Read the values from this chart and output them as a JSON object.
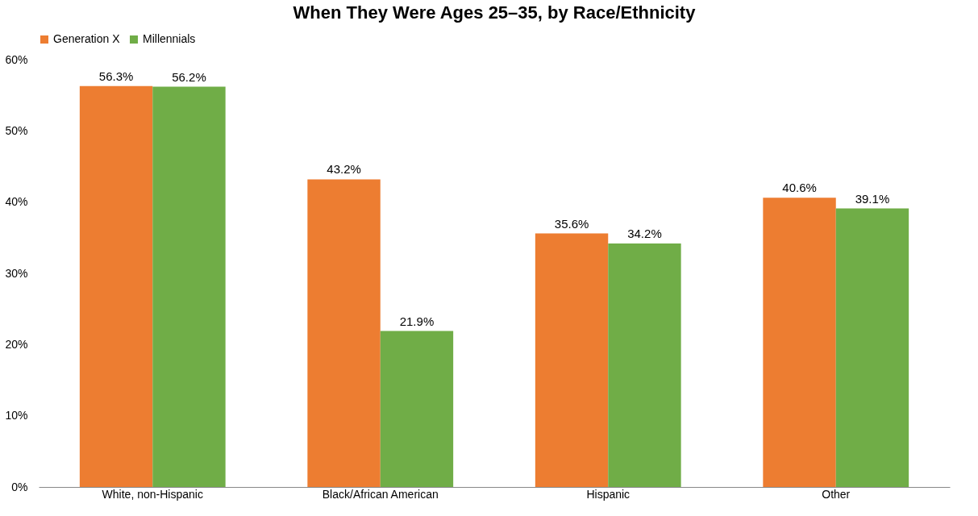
{
  "chart_data": {
    "type": "bar",
    "title": "When They Were Ages 25–35, by Race/Ethnicity",
    "categories": [
      "White, non-Hispanic",
      "Black/African American",
      "Hispanic",
      "Other"
    ],
    "series": [
      {
        "name": "Generation X",
        "color": "#ed7d31",
        "values": [
          56.3,
          43.2,
          35.6,
          40.6
        ],
        "value_labels": [
          "56.3%",
          "43.2%",
          "35.6%",
          "40.6%"
        ]
      },
      {
        "name": "Millennials",
        "color": "#70ad47",
        "values": [
          56.2,
          21.9,
          34.2,
          39.1
        ],
        "value_labels": [
          "56.2%",
          "21.9%",
          "34.2%",
          "39.1%"
        ]
      }
    ],
    "ylim": [
      0,
      60
    ],
    "yticks": [
      {
        "value": 0,
        "label": "0%"
      },
      {
        "value": 10,
        "label": "10%"
      },
      {
        "value": 20,
        "label": "20%"
      },
      {
        "value": 30,
        "label": "30%"
      },
      {
        "value": 40,
        "label": "40%"
      },
      {
        "value": 50,
        "label": "50%"
      },
      {
        "value": 60,
        "label": "60%"
      }
    ],
    "grid": false,
    "legend": "top"
  }
}
